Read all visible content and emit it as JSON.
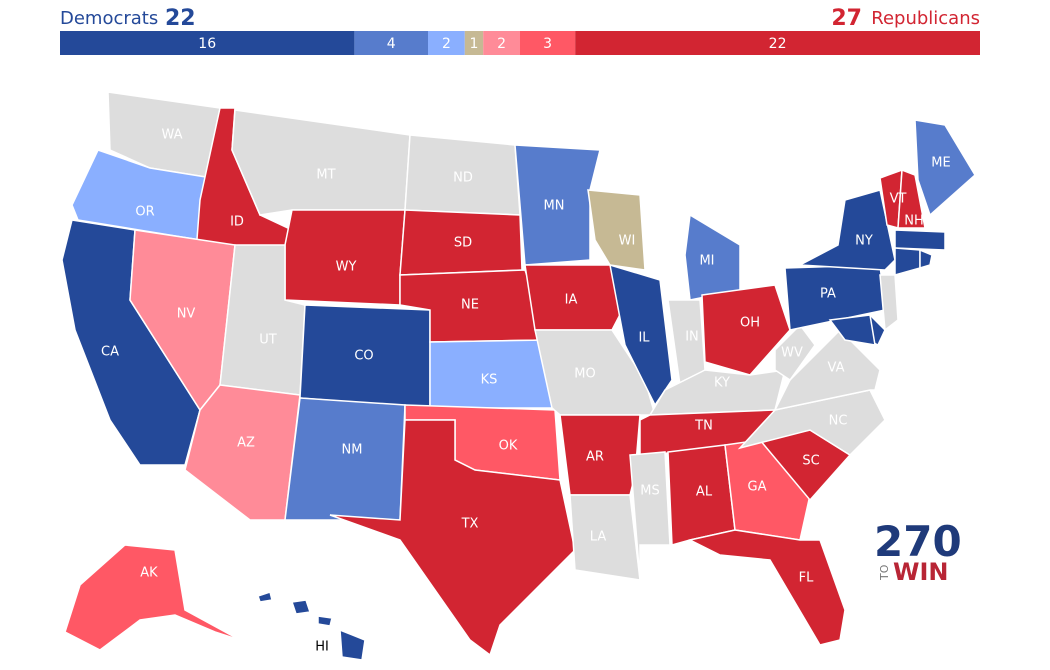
{
  "header": {
    "left_label": "Democrats",
    "left_total": 22,
    "right_total": 27,
    "right_label": "Republicans"
  },
  "bar": [
    {
      "value": 16,
      "color": "#244999"
    },
    {
      "value": 4,
      "color": "#577ccc"
    },
    {
      "value": 2,
      "color": "#8aafff"
    },
    {
      "value": 1,
      "color": "#c6b994"
    },
    {
      "value": 2,
      "color": "#ff8b98"
    },
    {
      "value": 3,
      "color": "#ff5865"
    },
    {
      "value": 22,
      "color": "#d22532"
    }
  ],
  "states": [
    {
      "label": "WA",
      "color": "#dddddd"
    },
    {
      "label": "OR",
      "color": "#8aafff"
    },
    {
      "label": "CA",
      "color": "#244999"
    },
    {
      "label": "ID",
      "color": "#d22532"
    },
    {
      "label": "NV",
      "color": "#ff8b98"
    },
    {
      "label": "MT",
      "color": "#dddddd"
    },
    {
      "label": "WY",
      "color": "#d22532"
    },
    {
      "label": "UT",
      "color": "#dddddd"
    },
    {
      "label": "AZ",
      "color": "#ff8b98"
    },
    {
      "label": "CO",
      "color": "#244999"
    },
    {
      "label": "NM",
      "color": "#577ccc"
    },
    {
      "label": "ND",
      "color": "#dddddd"
    },
    {
      "label": "SD",
      "color": "#d22532"
    },
    {
      "label": "NE",
      "color": "#d22532"
    },
    {
      "label": "KS",
      "color": "#8aafff"
    },
    {
      "label": "OK",
      "color": "#ff5865"
    },
    {
      "label": "TX",
      "color": "#d22532"
    },
    {
      "label": "MN",
      "color": "#577ccc"
    },
    {
      "label": "IA",
      "color": "#d22532"
    },
    {
      "label": "MO",
      "color": "#dddddd"
    },
    {
      "label": "AR",
      "color": "#d22532"
    },
    {
      "label": "LA",
      "color": "#dddddd"
    },
    {
      "label": "WI",
      "color": "#c6b994"
    },
    {
      "label": "IL",
      "color": "#244999"
    },
    {
      "label": "MI",
      "color": "#577ccc"
    },
    {
      "label": "IN",
      "color": "#dddddd"
    },
    {
      "label": "OH",
      "color": "#d22532"
    },
    {
      "label": "KY",
      "color": "#dddddd"
    },
    {
      "label": "TN",
      "color": "#d22532"
    },
    {
      "label": "MS",
      "color": "#dddddd"
    },
    {
      "label": "AL",
      "color": "#d22532"
    },
    {
      "label": "GA",
      "color": "#ff5865"
    },
    {
      "label": "FL",
      "color": "#d22532"
    },
    {
      "label": "SC",
      "color": "#d22532"
    },
    {
      "label": "NC",
      "color": "#dddddd"
    },
    {
      "label": "VA",
      "color": "#dddddd"
    },
    {
      "label": "WV",
      "color": "#dddddd"
    },
    {
      "label": "PA",
      "color": "#244999"
    },
    {
      "label": "NY",
      "color": "#244999"
    },
    {
      "label": "VT",
      "color": "#d22532"
    },
    {
      "label": "NH",
      "color": "#d22532"
    },
    {
      "label": "ME",
      "color": "#577ccc"
    },
    {
      "color": "#244999"
    },
    {
      "color": "#244999"
    },
    {
      "color": "#244999"
    },
    {
      "color": "#dddddd"
    },
    {
      "color": "#244999"
    },
    {
      "color": "#244999"
    },
    {
      "label": "AK",
      "color": "#ff5865"
    },
    {
      "label": "HI",
      "color": "#244999"
    }
  ],
  "logo": {
    "number": "270",
    "small": "TO",
    "word": "WIN"
  }
}
